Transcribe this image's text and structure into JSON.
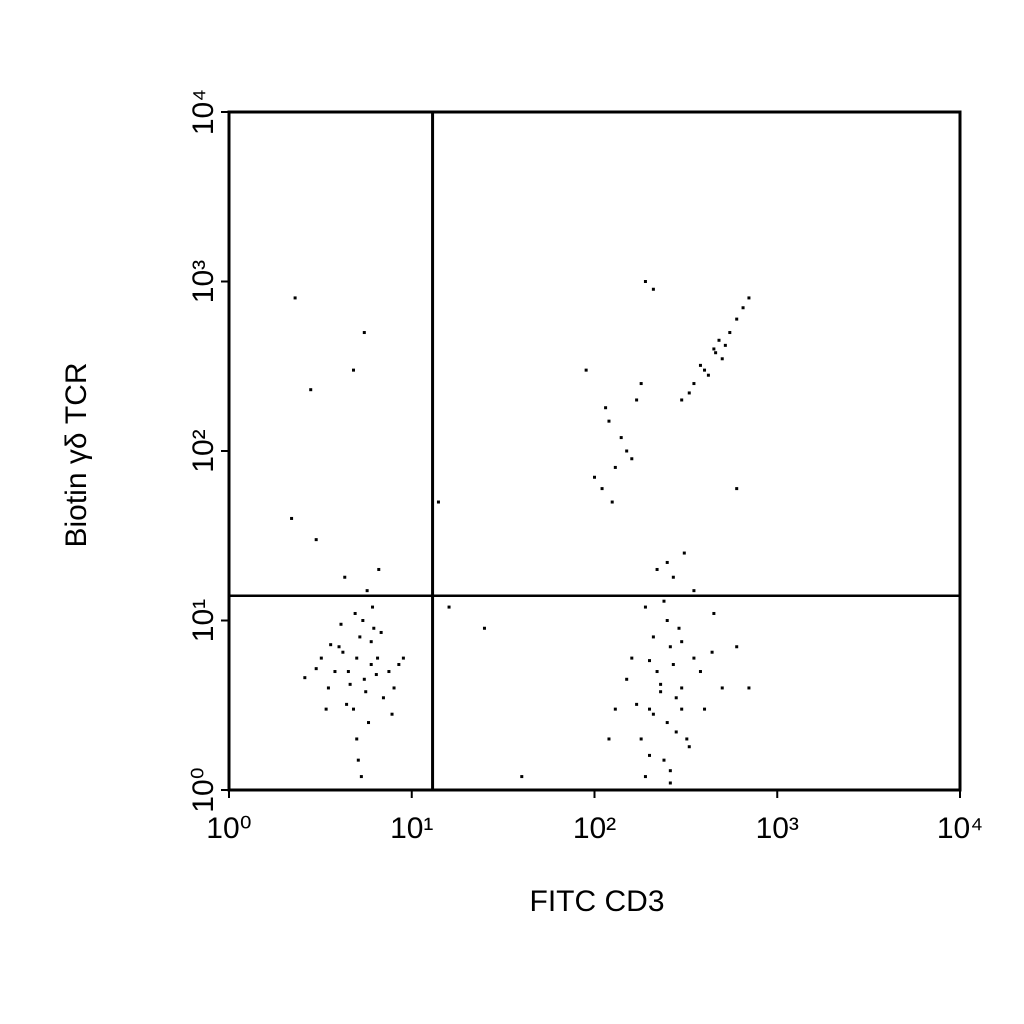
{
  "chart_data": {
    "type": "scatter",
    "x_label": "FITC CD3",
    "y_label": "Biotin γδ TCR",
    "xscale": "log",
    "yscale": "log",
    "xlim": [
      1,
      10000
    ],
    "ylim": [
      1,
      10000
    ],
    "xticks": [
      {
        "value": 1,
        "label": "10⁰"
      },
      {
        "value": 10,
        "label": "10¹"
      },
      {
        "value": 100,
        "label": "10²"
      },
      {
        "value": 1000,
        "label": "10³"
      },
      {
        "value": 10000,
        "label": "10⁴"
      }
    ],
    "yticks": [
      {
        "value": 1,
        "label": "10⁰"
      },
      {
        "value": 10,
        "label": "10¹"
      },
      {
        "value": 100,
        "label": "10²"
      },
      {
        "value": 1000,
        "label": "10³"
      },
      {
        "value": 10000,
        "label": "10⁴"
      }
    ],
    "quadrant_x": 13,
    "quadrant_y": 14,
    "color": "#000000",
    "x": [
      4.5,
      5,
      5.5,
      6,
      4,
      3.5,
      6.5,
      7,
      5.2,
      4.8,
      3.8,
      6.2,
      5.8,
      4.2,
      7.5,
      8,
      3.2,
      5,
      6,
      4.6,
      5.4,
      4.4,
      6.8,
      3,
      9,
      5.1,
      4.9,
      5.6,
      6.4,
      3.6,
      2.6,
      7.8,
      5.3,
      4.1,
      6.1,
      8.5,
      3.4,
      5.7,
      4.3,
      6.6,
      200,
      250,
      300,
      220,
      180,
      280,
      350,
      240,
      260,
      150,
      400,
      320,
      210,
      190,
      270,
      230,
      500,
      160,
      330,
      290,
      250,
      210,
      380,
      260,
      170,
      300,
      440,
      230,
      280,
      200,
      130,
      600,
      240,
      350,
      190,
      270,
      220,
      310,
      450,
      260,
      700,
      120,
      250,
      300,
      200,
      400,
      450,
      500,
      550,
      600,
      350,
      300,
      420,
      480,
      520,
      650,
      700,
      380,
      330,
      460,
      150,
      130,
      120,
      170,
      140,
      110,
      160,
      180,
      100,
      125,
      115,
      190,
      210,
      90,
      600,
      2.3,
      5.5,
      4.8,
      2.8,
      2.2,
      3,
      14,
      16,
      25,
      40
    ],
    "y": [
      5,
      6,
      4.5,
      5.5,
      7,
      4,
      6,
      3.5,
      8,
      3,
      5,
      9,
      2.5,
      6.5,
      5,
      4,
      6,
      2,
      7.5,
      4.2,
      10,
      3.2,
      8.5,
      5.2,
      6,
      1.5,
      11,
      3.8,
      4.8,
      7.2,
      4.6,
      2.8,
      1.2,
      9.5,
      12,
      5.5,
      3,
      15,
      18,
      20,
      3,
      2.5,
      4,
      5,
      2,
      3.5,
      6,
      1.5,
      7,
      4.5,
      3,
      2,
      8,
      1.2,
      5.5,
      3.8,
      4,
      6,
      1.8,
      9,
      10,
      2.8,
      5,
      1.3,
      3.2,
      7.5,
      6.5,
      4.2,
      2.2,
      5.8,
      3,
      7,
      13,
      15,
      12,
      18,
      20,
      25,
      11,
      1.1,
      4,
      2,
      22,
      3,
      1.6,
      300,
      400,
      350,
      500,
      600,
      250,
      200,
      280,
      450,
      420,
      700,
      800,
      320,
      220,
      380,
      100,
      80,
      150,
      200,
      120,
      60,
      90,
      250,
      70,
      50,
      180,
      1000,
      900,
      300,
      60,
      800,
      500,
      300,
      230,
      40,
      30,
      50,
      12,
      9,
      1.2
    ]
  }
}
